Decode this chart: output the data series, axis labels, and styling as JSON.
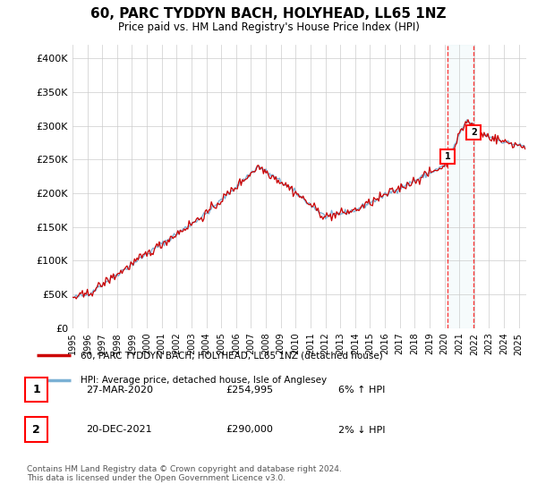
{
  "title": "60, PARC TYDDYN BACH, HOLYHEAD, LL65 1NZ",
  "subtitle": "Price paid vs. HM Land Registry's House Price Index (HPI)",
  "ylabel_ticks": [
    "£0",
    "£50K",
    "£100K",
    "£150K",
    "£200K",
    "£250K",
    "£300K",
    "£350K",
    "£400K"
  ],
  "ytick_values": [
    0,
    50000,
    100000,
    150000,
    200000,
    250000,
    300000,
    350000,
    400000
  ],
  "ylim": [
    0,
    420000
  ],
  "xlim_start": 1995.0,
  "xlim_end": 2025.5,
  "red_color": "#cc0000",
  "blue_color": "#7ab0d4",
  "blue_fill_color": "#ddeeff",
  "sale1_x": 2020.23,
  "sale1_y": 254995,
  "sale2_x": 2021.97,
  "sale2_y": 290000,
  "legend_label1": "60, PARC TYDDYN BACH, HOLYHEAD, LL65 1NZ (detached house)",
  "legend_label2": "HPI: Average price, detached house, Isle of Anglesey",
  "footnote": "Contains HM Land Registry data © Crown copyright and database right 2024.\nThis data is licensed under the Open Government Licence v3.0.",
  "table_rows": [
    [
      "1",
      "27-MAR-2020",
      "£254,995",
      "6% ↑ HPI"
    ],
    [
      "2",
      "20-DEC-2021",
      "£290,000",
      "2% ↓ HPI"
    ]
  ],
  "xtick_years": [
    1995,
    1996,
    1997,
    1998,
    1999,
    2000,
    2001,
    2002,
    2003,
    2004,
    2005,
    2006,
    2007,
    2008,
    2009,
    2010,
    2011,
    2012,
    2013,
    2014,
    2015,
    2016,
    2017,
    2018,
    2019,
    2020,
    2021,
    2022,
    2023,
    2024,
    2025
  ]
}
